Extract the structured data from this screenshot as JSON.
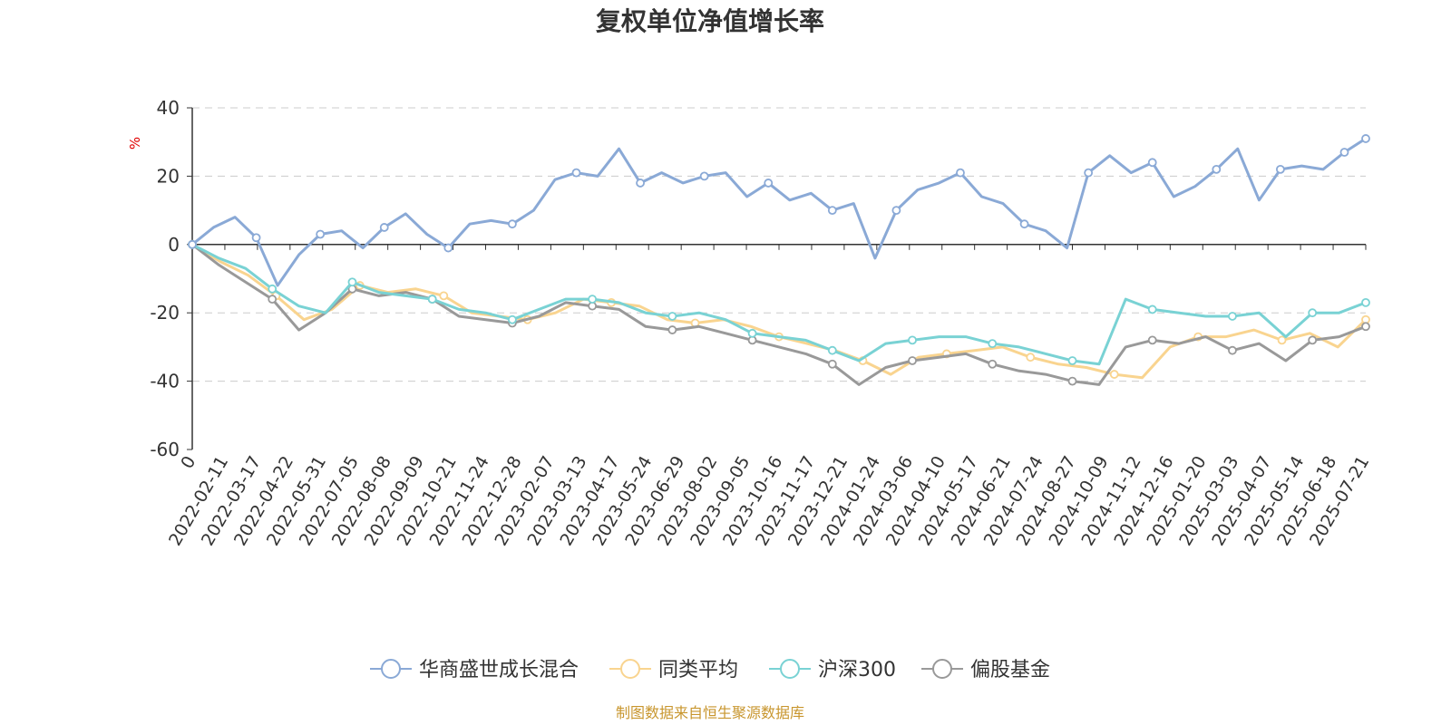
{
  "chart_data": {
    "type": "line",
    "title": "复权单位净值增长率",
    "y_unit": "%",
    "ylim": [
      -60,
      40
    ],
    "yticks": [
      40,
      20,
      0,
      -20,
      -40,
      -60
    ],
    "grid": "horizontal-dashed",
    "legend_position": "bottom",
    "x_tick_labels": [
      "0",
      "2022-02-11",
      "2022-03-17",
      "2022-04-22",
      "2022-05-31",
      "2022-07-05",
      "2022-08-08",
      "2022-09-09",
      "2022-10-21",
      "2022-11-24",
      "2022-12-28",
      "2023-02-07",
      "2023-03-13",
      "2023-04-17",
      "2023-05-24",
      "2023-06-29",
      "2023-08-02",
      "2023-09-05",
      "2023-10-16",
      "2023-11-17",
      "2023-12-21",
      "2024-01-24",
      "2024-03-06",
      "2024-04-10",
      "2024-05-17",
      "2024-06-21",
      "2024-07-24",
      "2024-08-27",
      "2024-10-09",
      "2024-11-12",
      "2024-12-16",
      "2025-01-20",
      "2025-03-03",
      "2025-04-07",
      "2025-05-14",
      "2025-06-18",
      "2025-07-21"
    ],
    "series": [
      {
        "name": "华商盛世成长混合",
        "color": "#8aa9d6",
        "values": [
          0,
          5,
          8,
          2,
          -12,
          -3,
          3,
          4,
          -1,
          5,
          9,
          3,
          -1,
          6,
          7,
          6,
          10,
          19,
          21,
          20,
          28,
          18,
          21,
          18,
          20,
          21,
          14,
          18,
          13,
          15,
          10,
          12,
          -4,
          10,
          16,
          18,
          21,
          14,
          12,
          6,
          4,
          -1,
          21,
          26,
          21,
          24,
          14,
          17,
          22,
          28,
          13,
          22,
          23,
          22,
          27,
          31
        ]
      },
      {
        "name": "同类平均",
        "color": "#f9d48f",
        "values": [
          0,
          -5,
          -9,
          -15,
          -22,
          -19,
          -12,
          -14,
          -13,
          -15,
          -20,
          -21,
          -22,
          -20,
          -16,
          -17,
          -18,
          -22,
          -23,
          -22,
          -24,
          -27,
          -29,
          -31,
          -34,
          -38,
          -33,
          -32,
          -31,
          -30,
          -33,
          -35,
          -36,
          -38,
          -39,
          -30,
          -27,
          -27,
          -25,
          -28,
          -26,
          -30,
          -22
        ]
      },
      {
        "name": "沪深300",
        "color": "#79d2d4",
        "values": [
          0,
          -4,
          -7,
          -13,
          -18,
          -20,
          -11,
          -14,
          -15,
          -16,
          -19,
          -20,
          -22,
          -19,
          -16,
          -16,
          -17,
          -20,
          -21,
          -20,
          -22,
          -26,
          -27,
          -28,
          -31,
          -34,
          -29,
          -28,
          -27,
          -27,
          -29,
          -30,
          -32,
          -34,
          -35,
          -16,
          -19,
          -20,
          -21,
          -21,
          -20,
          -27,
          -20,
          -20,
          -17
        ]
      },
      {
        "name": "偏股基金",
        "color": "#999999",
        "values": [
          0,
          -6,
          -11,
          -16,
          -25,
          -20,
          -13,
          -15,
          -14,
          -16,
          -21,
          -22,
          -23,
          -21,
          -17,
          -18,
          -19,
          -24,
          -25,
          -24,
          -26,
          -28,
          -30,
          -32,
          -35,
          -41,
          -36,
          -34,
          -33,
          -32,
          -35,
          -37,
          -38,
          -40,
          -41,
          -30,
          -28,
          -29,
          -27,
          -31,
          -29,
          -34,
          -28,
          -27,
          -24
        ]
      }
    ]
  },
  "source_note": "制图数据来自恒生聚源数据库",
  "source_color": "#c8962e",
  "unit_color": "#e00000"
}
